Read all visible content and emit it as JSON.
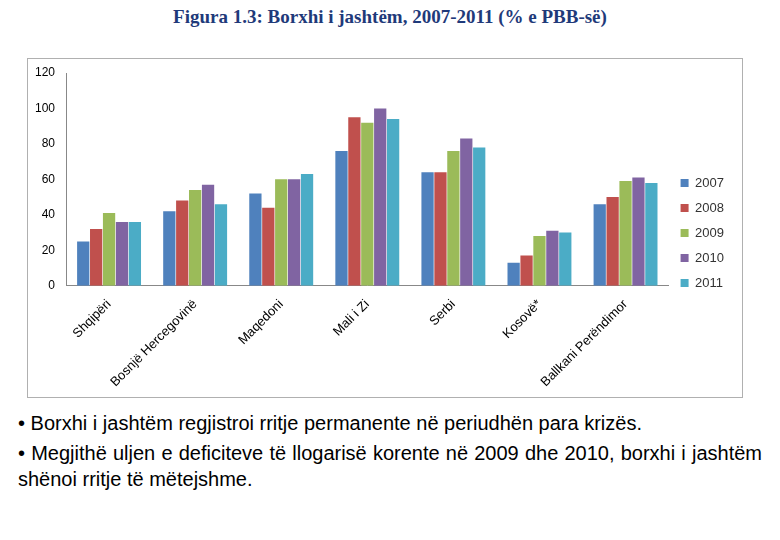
{
  "chart_data": {
    "type": "bar",
    "title": "Figura 1.3: Borxhi i jashtëm, 2007-2011 (% e PBB-së)",
    "categories": [
      "Shqipëri",
      "Bosnjë Hercegovinë",
      "Maqedoni",
      "Mali i Zi",
      "Serbi",
      "Kosovë*",
      "Ballkani Perëndimor"
    ],
    "series": [
      {
        "name": "2007",
        "color": "#4f81bd",
        "values": [
          25,
          42,
          52,
          76,
          64,
          13,
          46
        ]
      },
      {
        "name": "2008",
        "color": "#c0504d",
        "values": [
          32,
          48,
          44,
          95,
          64,
          17,
          50
        ]
      },
      {
        "name": "2009",
        "color": "#9bbb59",
        "values": [
          41,
          54,
          60,
          92,
          76,
          28,
          59
        ]
      },
      {
        "name": "2010",
        "color": "#8064a2",
        "values": [
          36,
          57,
          60,
          100,
          83,
          31,
          61
        ]
      },
      {
        "name": "2011",
        "color": "#4bacc6",
        "values": [
          36,
          46,
          63,
          94,
          78,
          30,
          58
        ]
      }
    ],
    "ylim": [
      0,
      120
    ],
    "yticks": [
      0,
      20,
      40,
      60,
      80,
      100,
      120
    ],
    "grid": false,
    "legend": "right"
  },
  "notes": [
    "Borxhi i jashtëm regjistroi rritje permanente në periudhën para krizës.",
    "Megjithë uljen e deficiteve të llogarisë korente në 2009 dhe 2010, borxhi i jashtëm shënoi rritje të mëtejshme."
  ]
}
